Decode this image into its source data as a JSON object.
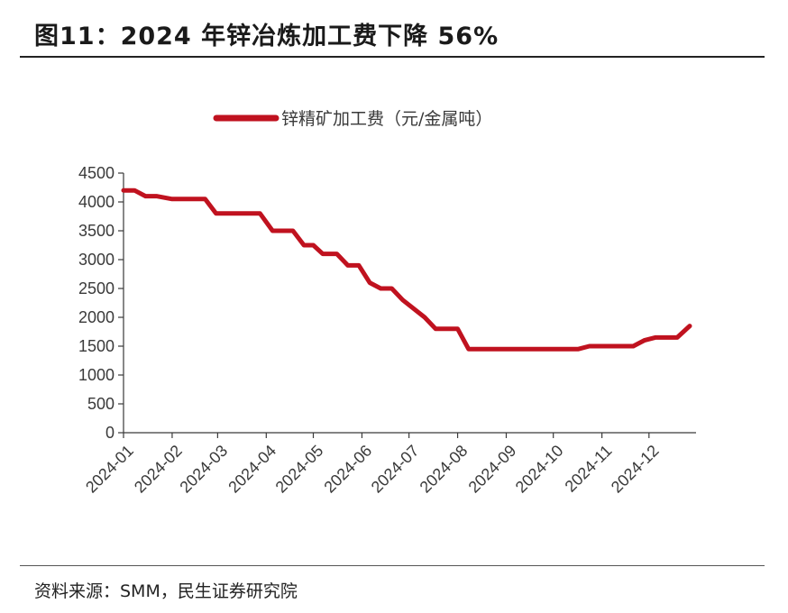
{
  "figure": {
    "title": "图11：2024 年锌冶炼加工费下降 56%",
    "source": "资料来源：SMM，民生证券研究院"
  },
  "chart_data": {
    "type": "line",
    "ylim": [
      0,
      4500
    ],
    "y_ticks": [
      0,
      500,
      1000,
      1500,
      2000,
      2500,
      3000,
      3500,
      4000,
      4500
    ],
    "x_ticks": [
      "2024-01",
      "2024-02",
      "2024-03",
      "2024-04",
      "2024-05",
      "2024-06",
      "2024-07",
      "2024-08",
      "2024-09",
      "2024-10",
      "2024-11",
      "2024-12"
    ],
    "legend_position": "top-center",
    "grid": false,
    "series": [
      {
        "name": "锌精矿加工费（元/金属吨）",
        "color": "#c0121f",
        "points": [
          {
            "x": "2024-01-01",
            "y": 4200
          },
          {
            "x": "2024-01-08",
            "y": 4200
          },
          {
            "x": "2024-01-15",
            "y": 4100
          },
          {
            "x": "2024-01-22",
            "y": 4100
          },
          {
            "x": "2024-02-01",
            "y": 4050
          },
          {
            "x": "2024-02-22",
            "y": 4050
          },
          {
            "x": "2024-02-29",
            "y": 3800
          },
          {
            "x": "2024-03-28",
            "y": 3800
          },
          {
            "x": "2024-04-05",
            "y": 3500
          },
          {
            "x": "2024-04-18",
            "y": 3500
          },
          {
            "x": "2024-04-25",
            "y": 3250
          },
          {
            "x": "2024-05-01",
            "y": 3250
          },
          {
            "x": "2024-05-07",
            "y": 3100
          },
          {
            "x": "2024-05-16",
            "y": 3100
          },
          {
            "x": "2024-05-23",
            "y": 2900
          },
          {
            "x": "2024-05-30",
            "y": 2900
          },
          {
            "x": "2024-06-06",
            "y": 2600
          },
          {
            "x": "2024-06-13",
            "y": 2500
          },
          {
            "x": "2024-06-20",
            "y": 2500
          },
          {
            "x": "2024-06-27",
            "y": 2300
          },
          {
            "x": "2024-07-11",
            "y": 2000
          },
          {
            "x": "2024-07-18",
            "y": 1800
          },
          {
            "x": "2024-07-25",
            "y": 1800
          },
          {
            "x": "2024-08-01",
            "y": 1800
          },
          {
            "x": "2024-08-08",
            "y": 1450
          },
          {
            "x": "2024-10-17",
            "y": 1450
          },
          {
            "x": "2024-10-24",
            "y": 1500
          },
          {
            "x": "2024-11-21",
            "y": 1500
          },
          {
            "x": "2024-11-28",
            "y": 1600
          },
          {
            "x": "2024-12-05",
            "y": 1650
          },
          {
            "x": "2024-12-19",
            "y": 1650
          },
          {
            "x": "2024-12-27",
            "y": 1850
          }
        ]
      }
    ]
  }
}
